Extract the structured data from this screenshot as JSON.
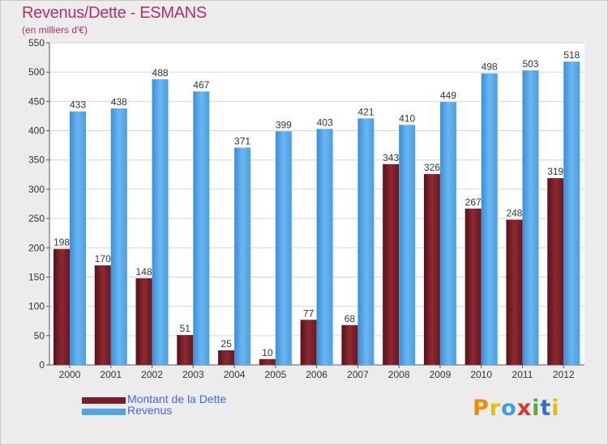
{
  "chart_data": {
    "type": "bar",
    "title": "Revenus/Dette - ESMANS",
    "subtitle": "(en milliers d'€)",
    "categories": [
      "2000",
      "2001",
      "2002",
      "2003",
      "2004",
      "2005",
      "2006",
      "2007",
      "2008",
      "2009",
      "2010",
      "2011",
      "2012"
    ],
    "series": [
      {
        "name": "Montant de la Dette",
        "color": "#7a1e26",
        "values": [
          198,
          170,
          148,
          51,
          25,
          10,
          77,
          68,
          343,
          326,
          267,
          248,
          319
        ]
      },
      {
        "name": "Revenus",
        "color": "#4ea6e8",
        "values": [
          433,
          438,
          488,
          467,
          371,
          399,
          403,
          421,
          410,
          449,
          498,
          503,
          518
        ]
      }
    ],
    "ylim": [
      0,
      550
    ],
    "yticks": [
      0,
      50,
      100,
      150,
      200,
      250,
      300,
      350,
      400,
      450,
      500,
      550
    ],
    "grid": true,
    "legend_position": "bottom-left"
  },
  "logo": {
    "letters": [
      "P",
      "r",
      "o",
      "x",
      "i",
      "t",
      "i"
    ]
  }
}
